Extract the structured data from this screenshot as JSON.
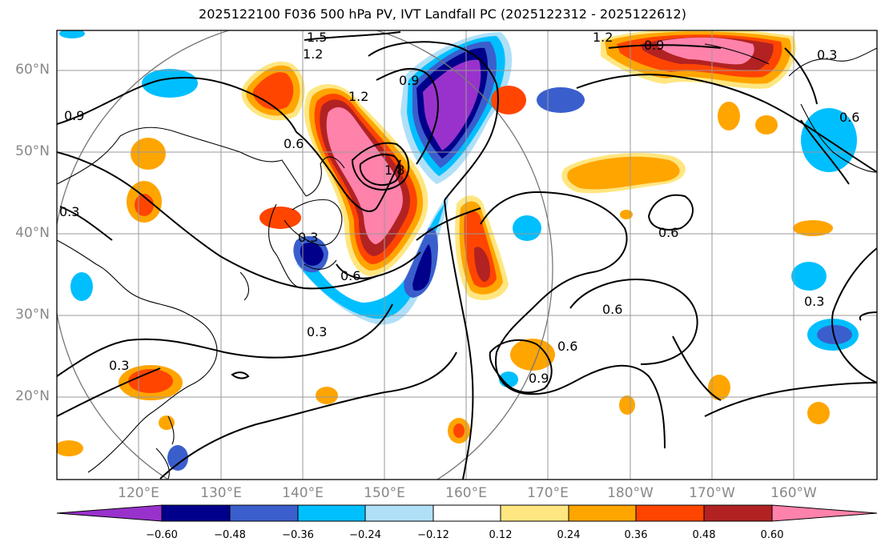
{
  "title": "2025122100 F036 500 hPa PV, IVT Landfall PC (2025122312 - 2025122612)",
  "lat_ticks": [
    "60°N",
    "50°N",
    "40°N",
    "30°N",
    "20°N"
  ],
  "lon_ticks": [
    "120°E",
    "130°E",
    "140°E",
    "150°E",
    "160°E",
    "170°E",
    "180°W",
    "170°W",
    "160°W"
  ],
  "contour_labels": [
    "1.5",
    "1.2",
    "1.2",
    "0.9",
    "1.2",
    "0.9",
    "0.9",
    "0.6",
    "1.8",
    "0.3",
    "0.3",
    "0.6",
    "0.6",
    "0.6",
    "0.3",
    "0.3",
    "0.6",
    "0.9",
    "0.6",
    "0.3",
    "0.3"
  ],
  "colorbar": {
    "labels": [
      "−0.60",
      "−0.48",
      "−0.36",
      "−0.24",
      "−0.12",
      "0.12",
      "0.24",
      "0.36",
      "0.48",
      "0.60"
    ],
    "colors": [
      "#9932cc",
      "#00008b",
      "#3a5fcd",
      "#00bfff",
      "#b0e0f8",
      "#ffffff",
      "#ffe680",
      "#ffa500",
      "#ff4500",
      "#b22222",
      "#ff82ab"
    ]
  },
  "colors": {
    "purple": "#9932cc",
    "navy": "#00008b",
    "blue": "#3a5fcd",
    "deepskyblue": "#00bfff",
    "lightblue": "#b0e0f8",
    "yellow": "#ffe680",
    "orange": "#ffa500",
    "orangered": "#ff4500",
    "firebrick": "#b22222",
    "pink": "#ff82ab"
  }
}
